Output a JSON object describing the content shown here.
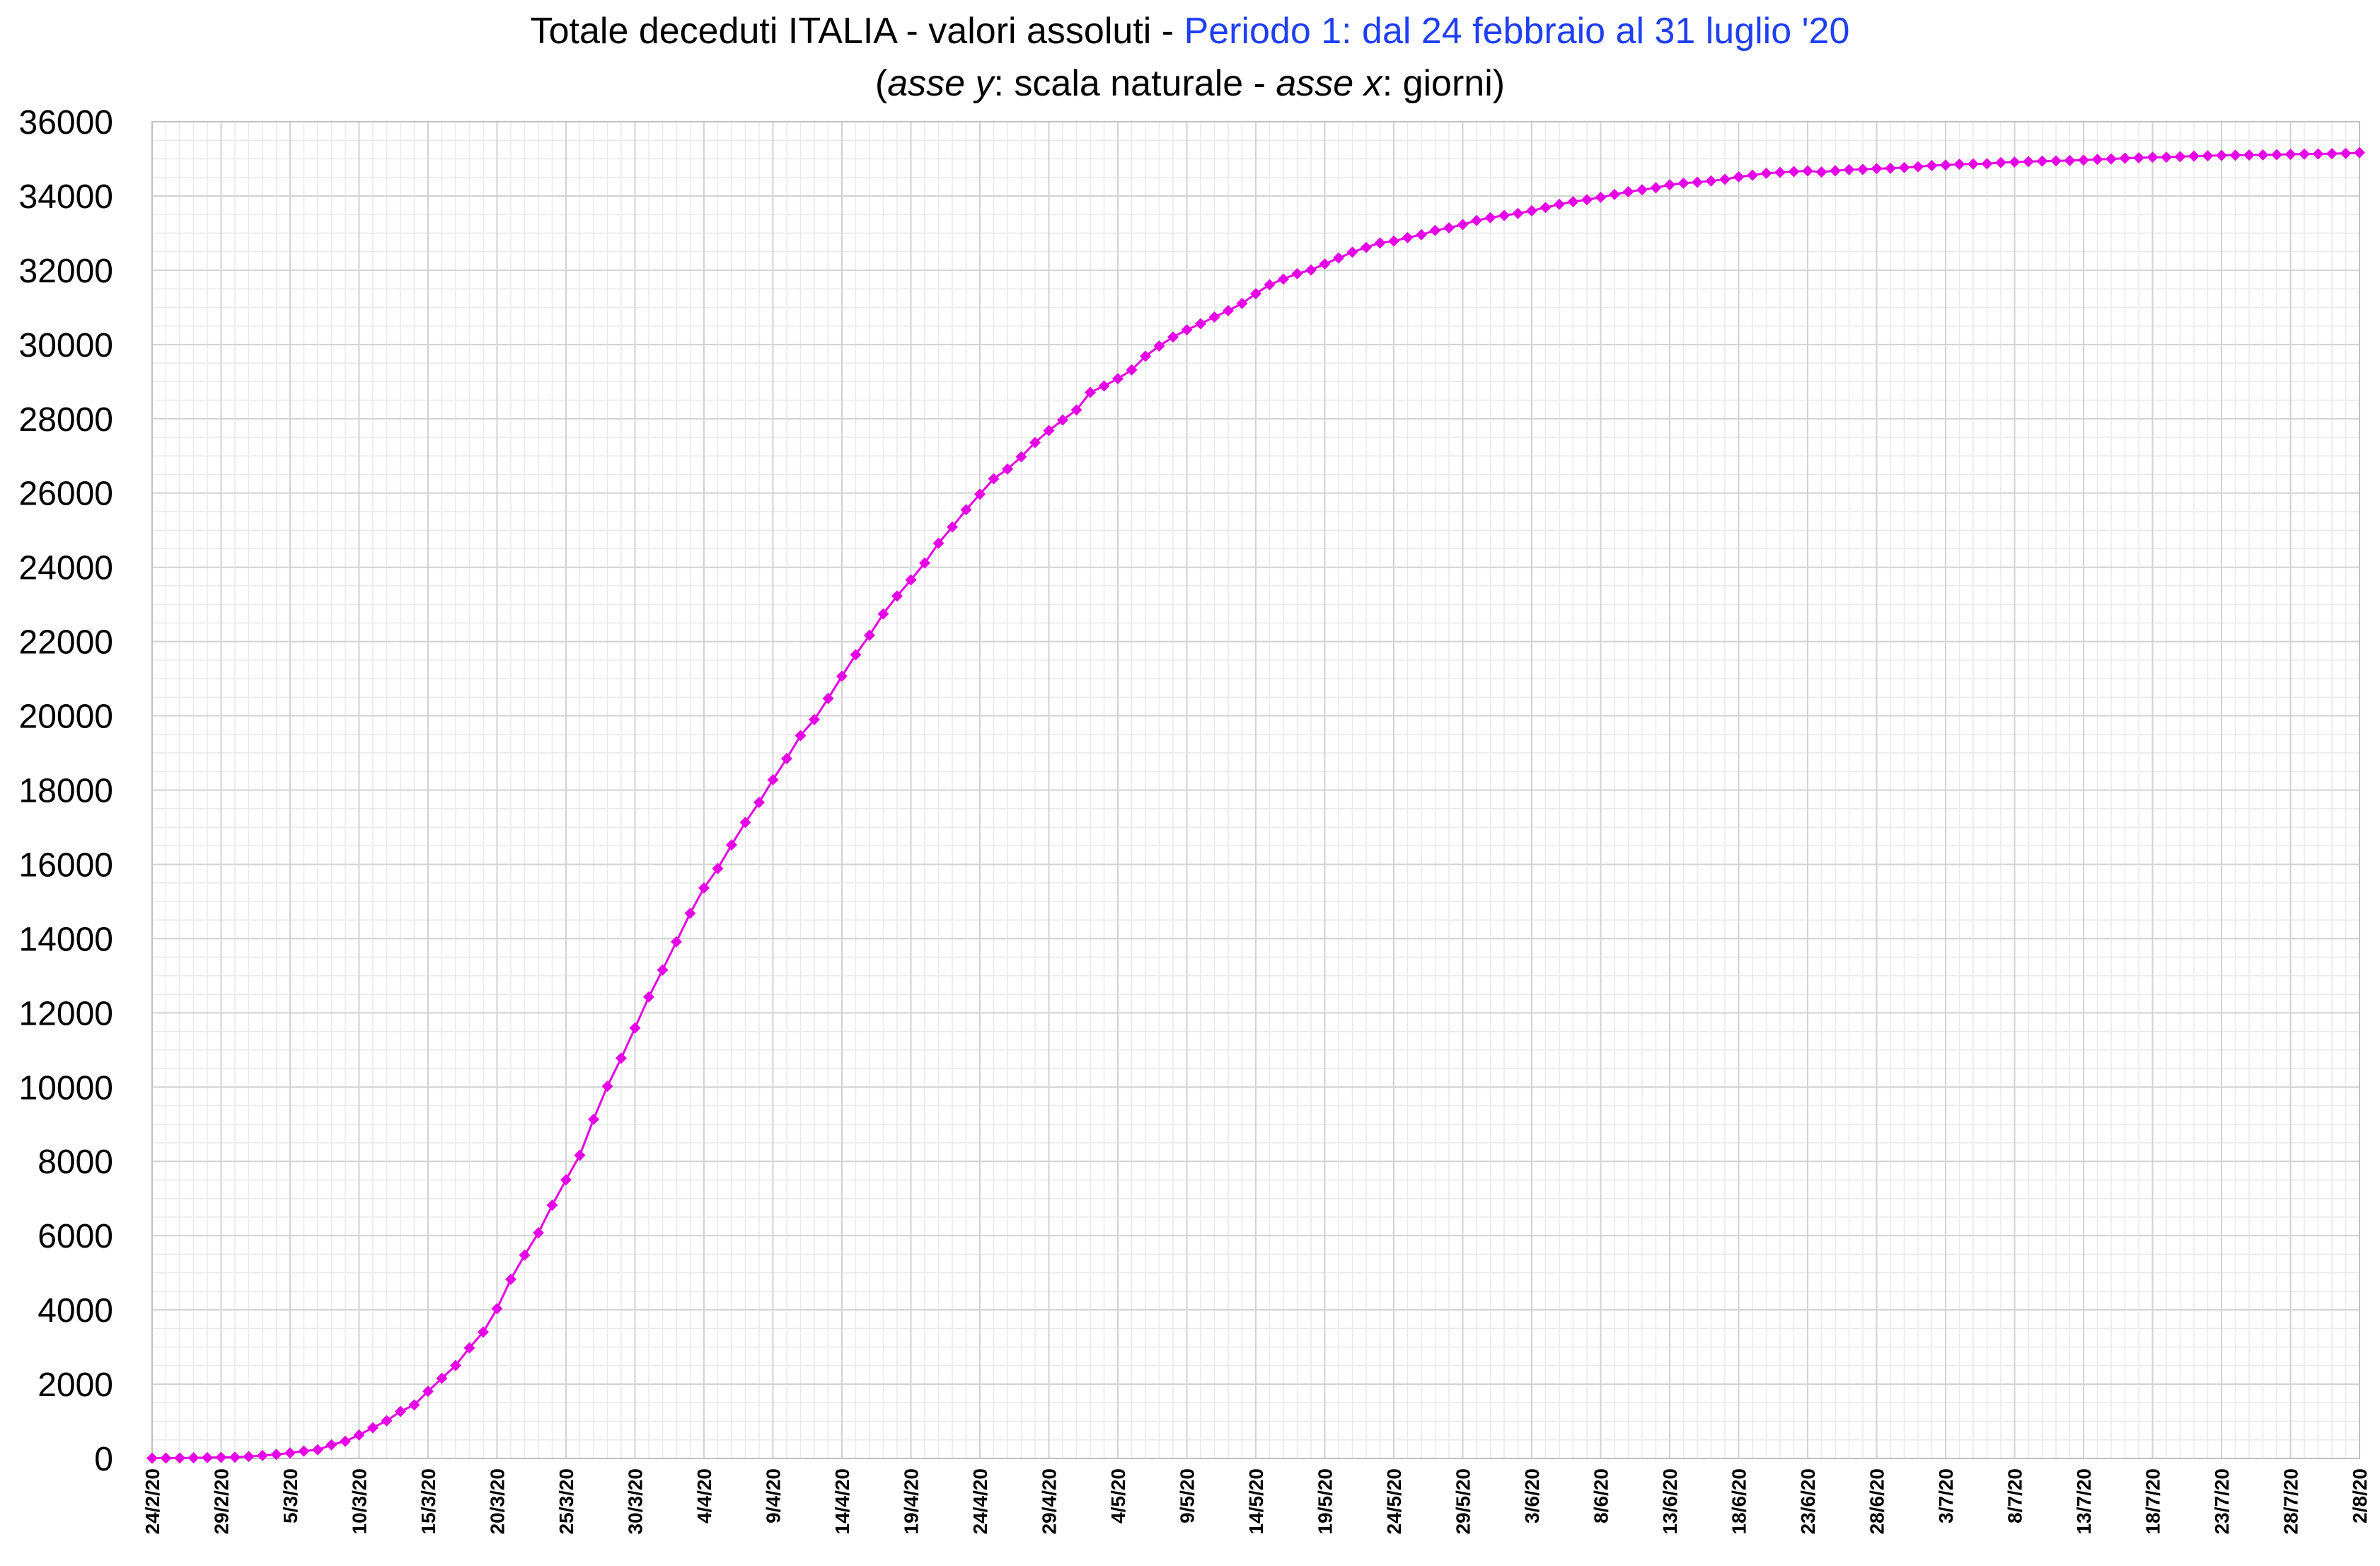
{
  "chart_data": {
    "type": "line",
    "title": {
      "part1": "Totale deceduti ITALIA - valori assoluti - ",
      "part2": "Periodo 1: dal 24 febbraio al 31 luglio '20"
    },
    "subtitle": {
      "open_paren": "(",
      "y_axis_name": "asse y",
      "y_axis_desc": ": scala naturale - ",
      "x_axis_name": "asse x",
      "x_axis_desc": ":  giorni)"
    },
    "ylim": [
      0,
      36000
    ],
    "y_ticks": [
      0,
      2000,
      4000,
      6000,
      8000,
      10000,
      12000,
      14000,
      16000,
      18000,
      20000,
      22000,
      24000,
      26000,
      28000,
      30000,
      32000,
      34000,
      36000
    ],
    "x_tick_labels": [
      "24/2/20",
      "29/2/20",
      "5/3/20",
      "10/3/20",
      "15/3/20",
      "20/3/20",
      "25/3/20",
      "30/3/20",
      "4/4/20",
      "9/4/20",
      "14/4/20",
      "19/4/20",
      "24/4/20",
      "29/4/20",
      "4/5/20",
      "9/5/20",
      "14/5/20",
      "19/5/20",
      "24/5/20",
      "29/5/20",
      "3/6/20",
      "8/6/20",
      "13/6/20",
      "18/6/20",
      "23/6/20",
      "28/6/20",
      "3/7/20",
      "8/7/20",
      "13/7/20",
      "18/7/20",
      "23/7/20",
      "28/7/20",
      "2/8/20"
    ],
    "x_range_days": [
      0,
      160
    ],
    "grid": true,
    "series_color": "#e600e6",
    "series": [
      {
        "values": [
          7,
          10,
          12,
          17,
          21,
          29,
          34,
          52,
          79,
          107,
          148,
          197,
          233,
          366,
          463,
          631,
          827,
          1016,
          1266,
          1441,
          1809,
          2158,
          2503,
          2978,
          3405,
          4032,
          4825,
          5476,
          6077,
          6820,
          7503,
          8165,
          9134,
          10023,
          10779,
          11591,
          12428,
          13155,
          13915,
          14681,
          15362,
          15887,
          16523,
          17127,
          17669,
          18279,
          18849,
          19468,
          19899,
          20465,
          21067,
          21645,
          22170,
          22745,
          23227,
          23660,
          24114,
          24648,
          25085,
          25549,
          25969,
          26384,
          26644,
          26977,
          27359,
          27682,
          27967,
          28236,
          28710,
          28884,
          29079,
          29315,
          29684,
          29958,
          30201,
          30395,
          30560,
          30739,
          30911,
          31106,
          31368,
          31610,
          31763,
          31908,
          32007,
          32169,
          32330,
          32486,
          32616,
          32735,
          32785,
          32877,
          32955,
          33072,
          33142,
          33229,
          33340,
          33415,
          33475,
          33530,
          33601,
          33689,
          33774,
          33846,
          33899,
          33964,
          34043,
          34114,
          34167,
          34223,
          34301,
          34345,
          34371,
          34405,
          34448,
          34514,
          34561,
          34610,
          34634,
          34657,
          34675,
          34644,
          34678,
          34708,
          34716,
          34738,
          34744,
          34767,
          34788,
          34818,
          34833,
          34854,
          34861,
          34869,
          34899,
          34914,
          34926,
          34938,
          34945,
          34954,
          34967,
          34984,
          34997,
          35017,
          35028,
          35042,
          35045,
          35058,
          35073,
          35082,
          35092,
          35097,
          35102,
          35107,
          35112,
          35123,
          35129,
          35132,
          35141,
          35146,
          35166
        ]
      }
    ]
  }
}
